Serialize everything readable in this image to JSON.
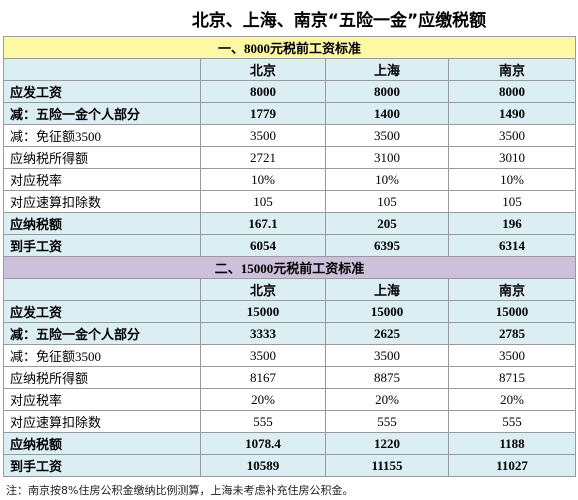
{
  "title": "北京、上海、南京“五险一金”应缴税额",
  "sections": [
    {
      "heading": "一、8000元税前工资标准",
      "columns": [
        "北京",
        "上海",
        "南京"
      ],
      "rows": [
        {
          "label": "应发工资",
          "values": [
            "8000",
            "8000",
            "8000"
          ]
        },
        {
          "label": "减：五险一金个人部分",
          "values": [
            "1779",
            "1400",
            "1490"
          ]
        },
        {
          "label": "减：免征额3500",
          "values": [
            "3500",
            "3500",
            "3500"
          ]
        },
        {
          "label": "应纳税所得额",
          "values": [
            "2721",
            "3100",
            "3010"
          ]
        },
        {
          "label": "对应税率",
          "values": [
            "10%",
            "10%",
            "10%"
          ]
        },
        {
          "label": "对应速算扣除数",
          "values": [
            "105",
            "105",
            "105"
          ]
        },
        {
          "label": "应纳税额",
          "values": [
            "167.1",
            "205",
            "196"
          ]
        },
        {
          "label": "到手工资",
          "values": [
            "6054",
            "6395",
            "6314"
          ]
        }
      ]
    },
    {
      "heading": "二、15000元税前工资标准",
      "columns": [
        "北京",
        "上海",
        "南京"
      ],
      "rows": [
        {
          "label": "应发工资",
          "values": [
            "15000",
            "15000",
            "15000"
          ]
        },
        {
          "label": "减：五险一金个人部分",
          "values": [
            "3333",
            "2625",
            "2785"
          ]
        },
        {
          "label": "减：免征额3500",
          "values": [
            "3500",
            "3500",
            "3500"
          ]
        },
        {
          "label": "应纳税所得额",
          "values": [
            "8167",
            "8875",
            "8715"
          ]
        },
        {
          "label": "对应税率",
          "values": [
            "20%",
            "20%",
            "20%"
          ]
        },
        {
          "label": "对应速算扣除数",
          "values": [
            "555",
            "555",
            "555"
          ]
        },
        {
          "label": "应纳税额",
          "values": [
            "1078.4",
            "1220",
            "1188"
          ]
        },
        {
          "label": "到手工资",
          "values": [
            "10589",
            "11155",
            "11027"
          ]
        }
      ]
    }
  ],
  "note": "注：南京按8%住房公积金缴纳比例测算，上海未考虑补充住房公积金。"
}
